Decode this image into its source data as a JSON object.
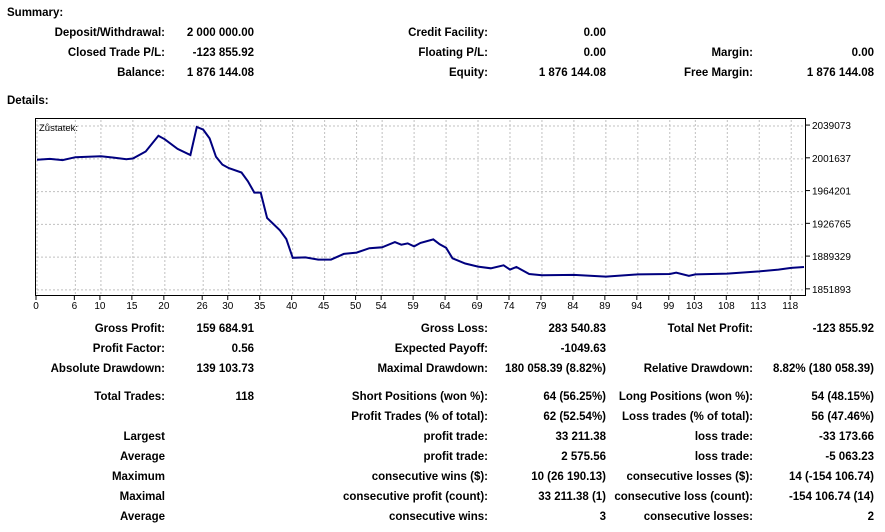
{
  "summary": {
    "title": "Summary:",
    "deposit_label": "Deposit/Withdrawal:",
    "deposit_value": "2 000 000.00",
    "credit_label": "Credit Facility:",
    "credit_value": "0.00",
    "closed_pl_label": "Closed Trade P/L:",
    "closed_pl_value": "-123 855.92",
    "floating_label": "Floating P/L:",
    "floating_value": "0.00",
    "margin_label": "Margin:",
    "margin_value": "0.00",
    "balance_label": "Balance:",
    "balance_value": "1 876 144.08",
    "equity_label": "Equity:",
    "equity_value": "1 876 144.08",
    "free_margin_label": "Free Margin:",
    "free_margin_value": "1 876 144.08"
  },
  "details": {
    "title": "Details:",
    "gross_profit_label": "Gross Profit:",
    "gross_profit_value": "159 684.91",
    "gross_loss_label": "Gross Loss:",
    "gross_loss_value": "283 540.83",
    "total_net_label": "Total Net Profit:",
    "total_net_value": "-123 855.92",
    "profit_factor_label": "Profit Factor:",
    "profit_factor_value": "0.56",
    "expected_payoff_label": "Expected Payoff:",
    "expected_payoff_value": "-1049.63",
    "abs_dd_label": "Absolute Drawdown:",
    "abs_dd_value": "139 103.73",
    "max_dd_label": "Maximal Drawdown:",
    "max_dd_value": "180 058.39 (8.82%)",
    "rel_dd_label": "Relative Drawdown:",
    "rel_dd_value": "8.82% (180 058.39)",
    "total_trades_label": "Total Trades:",
    "total_trades_value": "118",
    "short_label": "Short Positions (won %):",
    "short_value": "64 (56.25%)",
    "long_label": "Long Positions (won %):",
    "long_value": "54 (48.15%)",
    "profit_trades_label": "Profit Trades (% of total):",
    "profit_trades_value": "62 (52.54%)",
    "loss_trades_label": "Loss trades (% of total):",
    "loss_trades_value": "56 (47.46%)",
    "rows": [
      {
        "left": "Largest",
        "mid_label": "profit trade:",
        "mid_value": "33 211.38",
        "right_label": "loss trade:",
        "right_value": "-33 173.66"
      },
      {
        "left": "Average",
        "mid_label": "profit trade:",
        "mid_value": "2 575.56",
        "right_label": "loss trade:",
        "right_value": "-5 063.23"
      },
      {
        "left": "Maximum",
        "mid_label": "consecutive wins ($):",
        "mid_value": "10 (26 190.13)",
        "right_label": "consecutive losses ($):",
        "right_value": "14 (-154 106.74)"
      },
      {
        "left": "Maximal",
        "mid_label": "consecutive profit (count):",
        "mid_value": "33 211.38 (1)",
        "right_label": "consecutive loss (count):",
        "right_value": "-154 106.74 (14)"
      },
      {
        "left": "Average",
        "mid_label": "consecutive wins:",
        "mid_value": "3",
        "right_label": "consecutive losses:",
        "right_value": "2"
      }
    ]
  },
  "chart_data": {
    "type": "line",
    "title": "Zůstatek:",
    "line_color": "#00007f",
    "grid": true,
    "x_ticks": [
      0,
      6,
      10,
      15,
      20,
      26,
      30,
      35,
      40,
      45,
      50,
      54,
      59,
      64,
      69,
      74,
      79,
      84,
      89,
      94,
      99,
      103,
      108,
      113,
      118
    ],
    "y_ticks": [
      2039073,
      2001637,
      1964201,
      1926765,
      1889329,
      1851893
    ],
    "ylim": [
      1846000,
      2046000
    ],
    "xlim": [
      0,
      120
    ],
    "series": [
      {
        "x": [
          0,
          2,
          4,
          6,
          8,
          10,
          12,
          14,
          15,
          17,
          19,
          20,
          22,
          24,
          25,
          26,
          27,
          28,
          29,
          30,
          32,
          33,
          34,
          35,
          36,
          37,
          38,
          39,
          40,
          42,
          44,
          46,
          48,
          50,
          52,
          54,
          56,
          57,
          58,
          59,
          60,
          62,
          63,
          64,
          65,
          67,
          69,
          71,
          73,
          74,
          75,
          76,
          77,
          79,
          84,
          89,
          94,
          99,
          100,
          102,
          103,
          108,
          113,
          116,
          118,
          120
        ],
        "y": [
          2000500,
          2001500,
          2000200,
          2003500,
          2004000,
          2004500,
          2003000,
          2001200,
          2002000,
          2010000,
          2028000,
          2024000,
          2013000,
          2006000,
          2038000,
          2035000,
          2025000,
          2004000,
          1995000,
          1991000,
          1986000,
          1976000,
          1963000,
          1963000,
          1934000,
          1927000,
          1920000,
          1910000,
          1888500,
          1889000,
          1886500,
          1886500,
          1893000,
          1894500,
          1899500,
          1900500,
          1906500,
          1903500,
          1905000,
          1901500,
          1905500,
          1909500,
          1904000,
          1900000,
          1888000,
          1882000,
          1878500,
          1876500,
          1880000,
          1875000,
          1878000,
          1874000,
          1870000,
          1868500,
          1869000,
          1867000,
          1869500,
          1870000,
          1871500,
          1868000,
          1869500,
          1870500,
          1873000,
          1875000,
          1877000,
          1878000
        ]
      }
    ]
  }
}
